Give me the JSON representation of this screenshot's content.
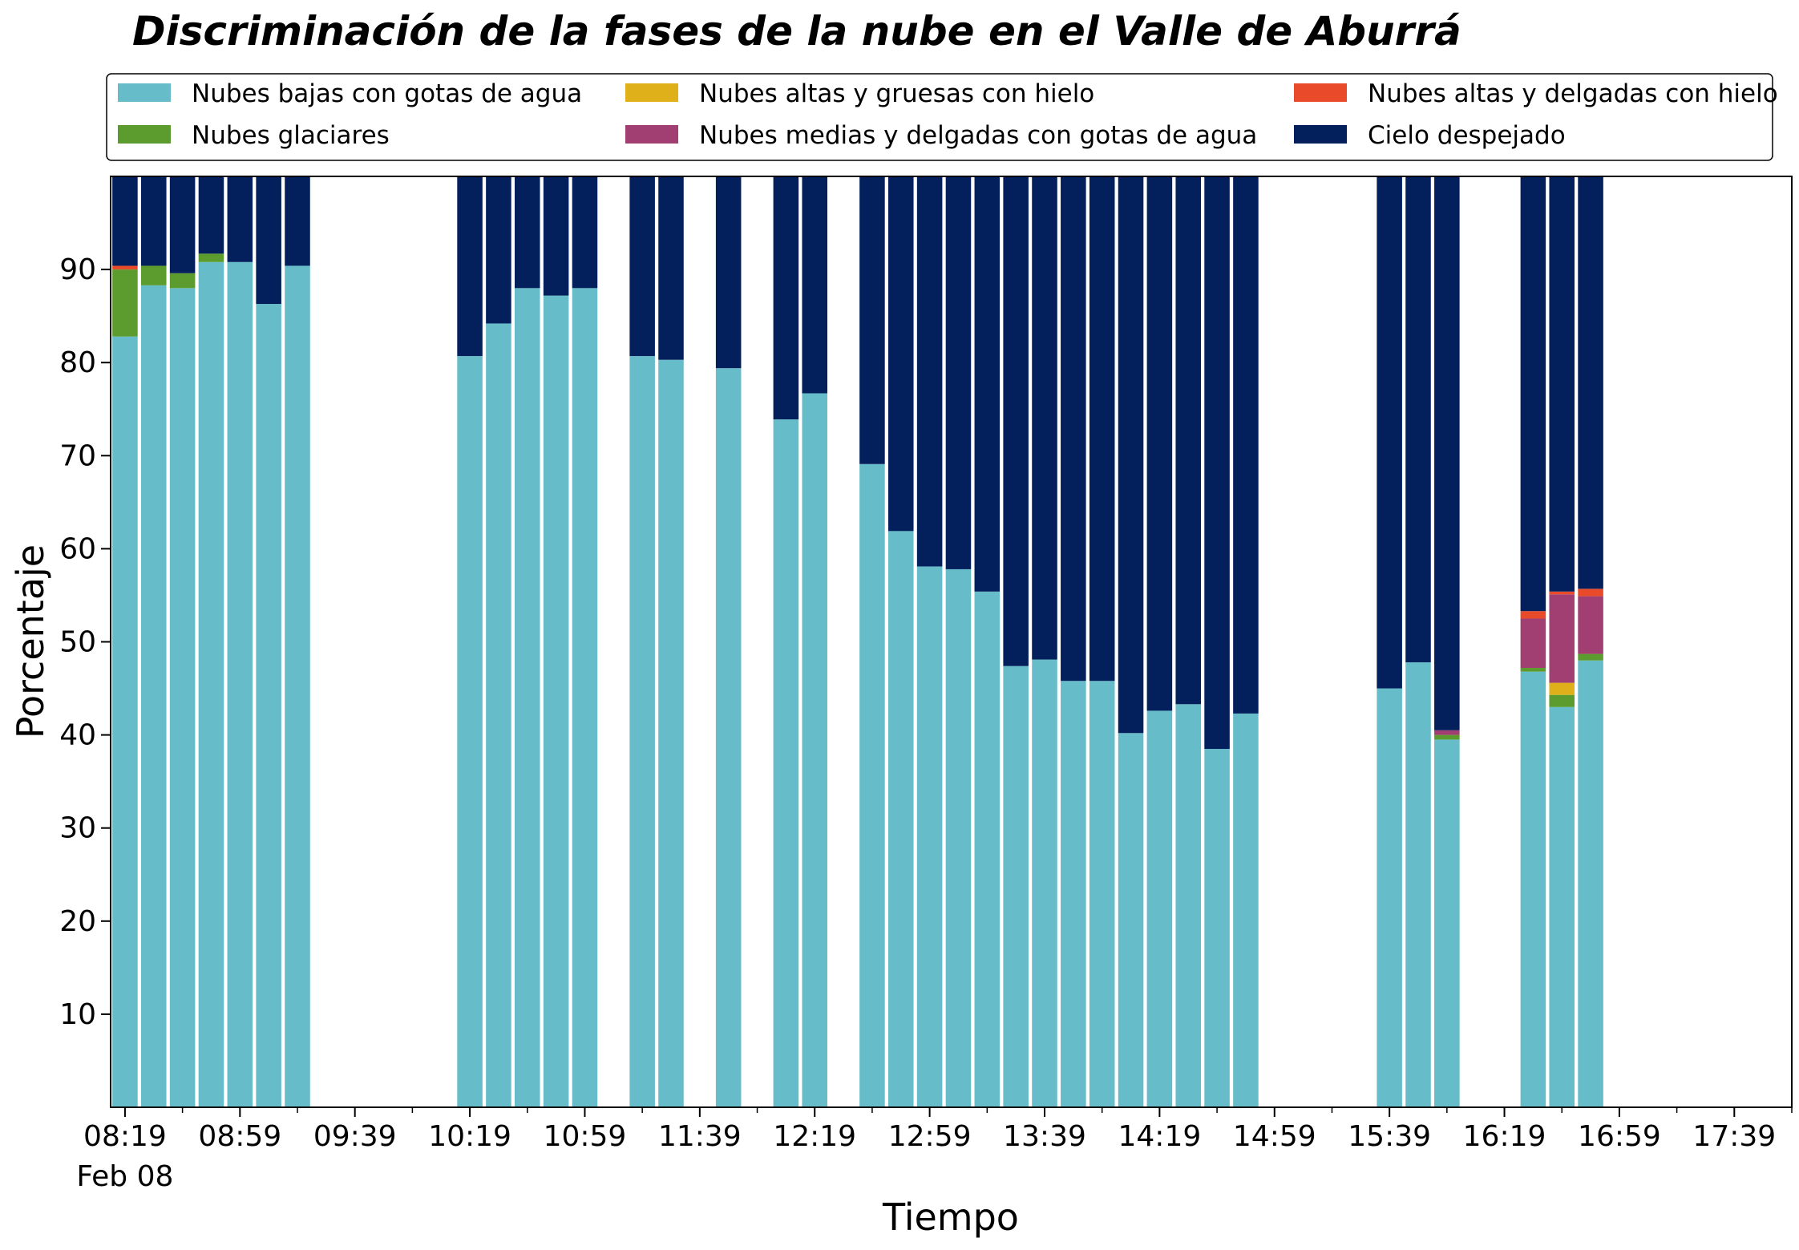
{
  "chart_data": {
    "type": "bar",
    "stacked": true,
    "title": "Discriminación de la fases de la nube en el Valle de Aburrá",
    "xlabel": "Tiempo",
    "ylabel": "Porcentaje",
    "ylim": [
      0,
      100
    ],
    "yticks": [
      10,
      20,
      30,
      40,
      50,
      60,
      70,
      80,
      90
    ],
    "grid": false,
    "legend_position": "top",
    "x_start": "08:14",
    "x_end": "17:59",
    "x_ticks": [
      "08:19",
      "08:59",
      "09:39",
      "10:19",
      "10:59",
      "11:39",
      "12:19",
      "12:59",
      "13:39",
      "14:19",
      "14:59",
      "15:39",
      "16:19",
      "16:59",
      "17:39"
    ],
    "x_minor_ticks": [
      "08:39",
      "09:19",
      "09:59",
      "10:39",
      "11:19",
      "11:59",
      "12:39",
      "13:19",
      "13:59",
      "14:39",
      "15:19",
      "15:59",
      "16:39",
      "17:19",
      "17:59"
    ],
    "x_date_label": "Feb 08",
    "x": [
      "08:19",
      "08:29",
      "08:39",
      "08:49",
      "08:59",
      "09:09",
      "09:19",
      "10:19",
      "10:29",
      "10:39",
      "10:49",
      "10:59",
      "11:19",
      "11:29",
      "11:49",
      "12:09",
      "12:19",
      "12:39",
      "12:49",
      "12:59",
      "13:09",
      "13:19",
      "13:29",
      "13:39",
      "13:49",
      "13:59",
      "14:09",
      "14:19",
      "14:29",
      "14:39",
      "14:49",
      "15:39",
      "15:49",
      "15:59",
      "16:29",
      "16:39",
      "16:49"
    ],
    "series": [
      {
        "name": "Nubes bajas con gotas de agua",
        "color": "#66bcc8",
        "values": [
          82.8,
          88.3,
          88.0,
          90.8,
          90.8,
          86.3,
          90.4,
          80.7,
          84.2,
          88.0,
          87.2,
          88.0,
          80.7,
          80.3,
          79.4,
          73.9,
          76.7,
          69.1,
          61.9,
          58.1,
          57.8,
          55.4,
          47.4,
          48.1,
          45.8,
          45.8,
          40.2,
          42.6,
          43.3,
          38.5,
          42.3,
          45.0,
          47.8,
          39.5,
          46.8,
          43.0,
          48.0
        ]
      },
      {
        "name": "Nubes glaciares",
        "color": "#5c9c2e",
        "values": [
          7.2,
          2.1,
          1.6,
          0.9,
          0,
          0,
          0,
          0,
          0,
          0,
          0,
          0,
          0,
          0,
          0,
          0,
          0,
          0,
          0,
          0,
          0,
          0,
          0,
          0,
          0,
          0,
          0,
          0,
          0,
          0,
          0,
          0,
          0,
          0.5,
          0.4,
          1.3,
          0.7
        ]
      },
      {
        "name": "Nubes altas y gruesas con hielo",
        "color": "#e0b01a",
        "values": [
          0,
          0,
          0,
          0,
          0,
          0,
          0,
          0,
          0,
          0,
          0,
          0,
          0,
          0,
          0,
          0,
          0,
          0,
          0,
          0,
          0,
          0,
          0,
          0,
          0,
          0,
          0,
          0,
          0,
          0,
          0,
          0,
          0,
          0,
          0,
          1.3,
          0
        ]
      },
      {
        "name": "Nubes medias y delgadas con gotas de agua",
        "color": "#a23f72",
        "values": [
          0,
          0,
          0,
          0,
          0,
          0,
          0,
          0,
          0,
          0,
          0,
          0,
          0,
          0,
          0,
          0,
          0,
          0,
          0,
          0,
          0,
          0,
          0,
          0,
          0,
          0,
          0,
          0,
          0,
          0,
          0,
          0,
          0,
          0.5,
          5.3,
          9.5,
          6.2
        ]
      },
      {
        "name": "Nubes altas y delgadas con hielo",
        "color": "#e84a2a",
        "values": [
          0.4,
          0,
          0,
          0,
          0,
          0,
          0,
          0,
          0,
          0,
          0,
          0,
          0,
          0,
          0,
          0,
          0,
          0,
          0,
          0,
          0,
          0,
          0,
          0,
          0,
          0,
          0,
          0,
          0,
          0,
          0,
          0,
          0,
          0,
          0.8,
          0.3,
          0.8
        ]
      },
      {
        "name": "Cielo despejado",
        "color": "#03205c",
        "values": [
          9.6,
          9.6,
          10.4,
          8.3,
          9.2,
          13.7,
          9.6,
          19.3,
          15.8,
          12.0,
          12.8,
          12.0,
          19.3,
          19.7,
          20.6,
          26.1,
          23.3,
          30.9,
          38.1,
          41.9,
          42.2,
          44.6,
          52.6,
          51.9,
          54.2,
          54.2,
          59.8,
          57.4,
          56.7,
          61.5,
          57.7,
          55.0,
          52.2,
          59.5,
          46.7,
          44.6,
          44.3
        ]
      }
    ]
  }
}
